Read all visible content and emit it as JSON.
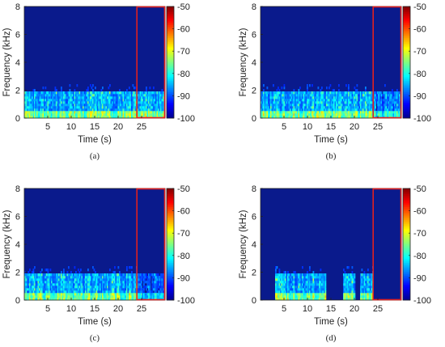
{
  "colors": {
    "background": "#0a1a8c",
    "highlight_box": "#e02020",
    "colormap": [
      "#00008f",
      "#0000ff",
      "#0080ff",
      "#00ffff",
      "#80ff80",
      "#ffff00",
      "#ff8000",
      "#ff0000",
      "#800000"
    ]
  },
  "chart_data": [
    {
      "type": "heatmap",
      "caption": "(a)",
      "xlabel": "Time (s)",
      "ylabel": "Frequency (kHz)",
      "xticks": [
        5,
        10,
        15,
        20,
        25
      ],
      "yticks": [
        0,
        2,
        4,
        6,
        8
      ],
      "xlim": [
        0,
        30
      ],
      "ylim": [
        0,
        8
      ],
      "colorbar": {
        "ticks": [
          -50,
          -60,
          -70,
          -80,
          -90,
          -100
        ],
        "range": [
          -100,
          -50
        ]
      },
      "highlight_region": {
        "x": [
          24,
          30
        ],
        "y": [
          0,
          8
        ]
      },
      "silent_intervals": [],
      "tail_level": 1.0
    },
    {
      "type": "heatmap",
      "caption": "(b)",
      "xlabel": "Time (s)",
      "ylabel": "Frequency (kHz)",
      "xticks": [
        5,
        10,
        15,
        20,
        25
      ],
      "yticks": [
        0,
        2,
        4,
        6,
        8
      ],
      "xlim": [
        0,
        30
      ],
      "ylim": [
        0,
        8
      ],
      "colorbar": {
        "ticks": [
          -50,
          -60,
          -70,
          -80,
          -90,
          -100
        ],
        "range": [
          -100,
          -50
        ]
      },
      "highlight_region": {
        "x": [
          24,
          30
        ],
        "y": [
          0,
          8
        ]
      },
      "silent_intervals": [],
      "tail_level": 0.8
    },
    {
      "type": "heatmap",
      "caption": "(c)",
      "xlabel": "Time (s)",
      "ylabel": "Frequency (kHz)",
      "xticks": [
        5,
        10,
        15,
        20,
        25
      ],
      "yticks": [
        0,
        2,
        4,
        6,
        8
      ],
      "xlim": [
        0,
        30
      ],
      "ylim": [
        0,
        8
      ],
      "colorbar": {
        "ticks": [
          -50,
          -60,
          -70,
          -80,
          -90,
          -100
        ],
        "range": [
          -100,
          -50
        ]
      },
      "highlight_region": {
        "x": [
          24,
          30
        ],
        "y": [
          0,
          8
        ]
      },
      "silent_intervals": [],
      "tail_level": 0.7
    },
    {
      "type": "heatmap",
      "caption": "(d)",
      "xlabel": "Time (s)",
      "ylabel": "Frequency (kHz)",
      "xticks": [
        5,
        10,
        15,
        20,
        25
      ],
      "yticks": [
        0,
        2,
        4,
        6,
        8
      ],
      "xlim": [
        0,
        30
      ],
      "ylim": [
        0,
        8
      ],
      "colorbar": {
        "ticks": [
          -50,
          -60,
          -70,
          -80,
          -90,
          -100
        ],
        "range": [
          -100,
          -50
        ]
      },
      "highlight_region": {
        "x": [
          24,
          30
        ],
        "y": [
          0,
          8
        ]
      },
      "silent_intervals": [
        [
          0,
          3
        ],
        [
          14,
          17.5
        ],
        [
          20.3,
          21.3
        ],
        [
          24,
          30
        ]
      ],
      "tail_level": 0.0
    }
  ]
}
